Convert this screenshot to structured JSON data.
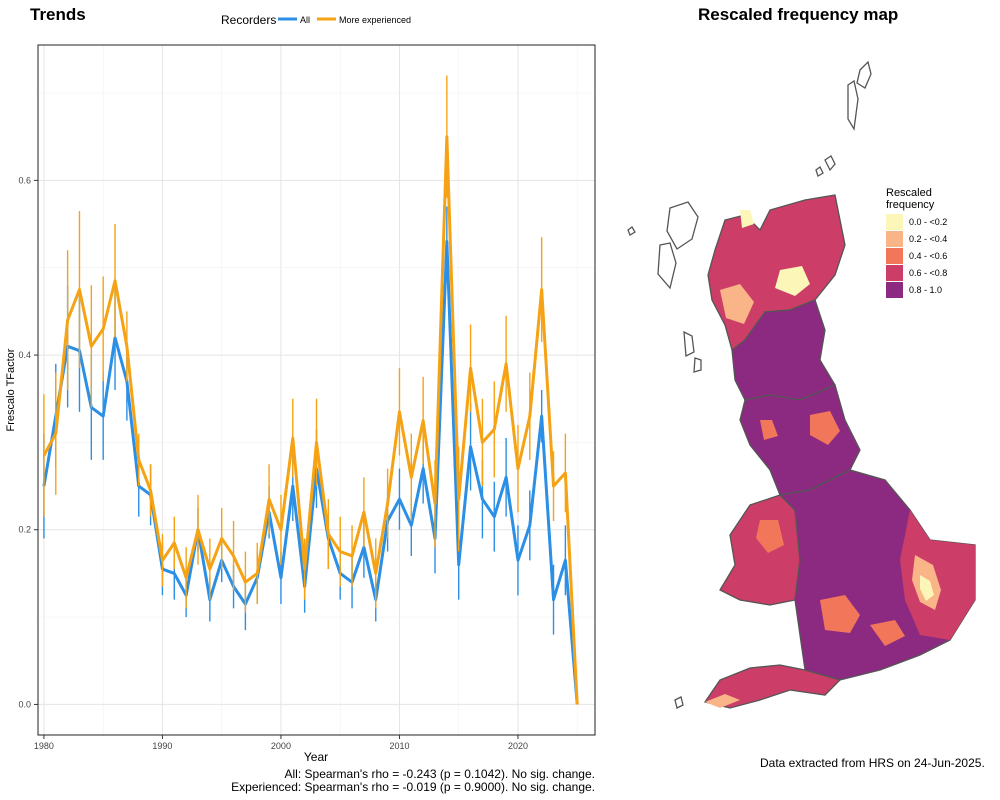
{
  "left_panel": {
    "title": "Trends"
  },
  "right_panel": {
    "title": "Rescaled frequency map"
  },
  "legend": {
    "title": "Recorders",
    "items": [
      "All",
      "More experienced"
    ]
  },
  "stats": {
    "all": "All: Spearman's rho = -0.243 (p = 0.1042). No sig. change.",
    "experienced": "Experienced: Spearman's rho = -0.019 (p = 0.9000). No sig. change."
  },
  "data_note": "Data extracted from HRS on 24-Jun-2025.",
  "map_legend": {
    "title_line1": "Rescaled",
    "title_line2": "frequency",
    "classes": [
      {
        "label": "0.0 - <0.2",
        "color": "#fcf6b9"
      },
      {
        "label": "0.2 - <0.4",
        "color": "#f9b487"
      },
      {
        "label": "0.4 - <0.6",
        "color": "#f2765a"
      },
      {
        "label": "0.6 - <0.8",
        "color": "#cc3d68"
      },
      {
        "label": "0.8 - 1.0",
        "color": "#8c2a82"
      }
    ]
  },
  "chart_data": {
    "type": "line",
    "xlabel": "Year",
    "ylabel": "Frescalo TFactor",
    "xlim": [
      1979.5,
      2026.5
    ],
    "ylim": [
      -0.035,
      0.755
    ],
    "xticks": [
      1980,
      1990,
      2000,
      2010,
      2020
    ],
    "yticks": [
      0.0,
      0.2,
      0.4,
      0.6
    ],
    "grid": true,
    "legend_position": "top",
    "x": [
      1980,
      1981,
      1982,
      1983,
      1984,
      1985,
      1986,
      1987,
      1988,
      1989,
      1990,
      1991,
      1992,
      1993,
      1994,
      1995,
      1996,
      1997,
      1998,
      1999,
      2000,
      2001,
      2002,
      2003,
      2004,
      2005,
      2006,
      2007,
      2008,
      2009,
      2010,
      2011,
      2012,
      2013,
      2014,
      2015,
      2016,
      2017,
      2018,
      2019,
      2020,
      2021,
      2022,
      2023,
      2024,
      2025
    ],
    "series": [
      {
        "name": "All",
        "color": "#2b8fe6",
        "values": [
          0.25,
          0.33,
          0.41,
          0.405,
          0.34,
          0.33,
          0.42,
          0.37,
          0.25,
          0.24,
          0.155,
          0.15,
          0.125,
          0.2,
          0.12,
          0.165,
          0.135,
          0.115,
          0.145,
          0.22,
          0.145,
          0.25,
          0.135,
          0.27,
          0.19,
          0.15,
          0.14,
          0.18,
          0.12,
          0.21,
          0.235,
          0.205,
          0.27,
          0.19,
          0.53,
          0.16,
          0.295,
          0.235,
          0.215,
          0.26,
          0.165,
          0.205,
          0.33,
          0.12,
          0.165,
          0.0
        ],
        "errors": [
          0.06,
          0.06,
          0.07,
          0.07,
          0.06,
          0.05,
          0.06,
          0.045,
          0.035,
          0.035,
          0.03,
          0.03,
          0.025,
          0.025,
          0.025,
          0.025,
          0.025,
          0.03,
          0.03,
          0.03,
          0.03,
          0.04,
          0.03,
          0.045,
          0.035,
          0.03,
          0.03,
          0.035,
          0.025,
          0.035,
          0.035,
          0.035,
          0.04,
          0.04,
          0.04,
          0.04,
          0.05,
          0.045,
          0.04,
          0.045,
          0.04,
          0.04,
          0.03,
          0.04,
          0.04,
          0.0
        ]
      },
      {
        "name": "More experienced",
        "color": "#f5a315",
        "values": [
          0.285,
          0.31,
          0.44,
          0.475,
          0.41,
          0.43,
          0.485,
          0.41,
          0.28,
          0.245,
          0.165,
          0.185,
          0.145,
          0.2,
          0.155,
          0.19,
          0.17,
          0.14,
          0.15,
          0.235,
          0.2,
          0.305,
          0.155,
          0.3,
          0.195,
          0.175,
          0.17,
          0.22,
          0.15,
          0.23,
          0.335,
          0.26,
          0.325,
          0.23,
          0.65,
          0.235,
          0.385,
          0.3,
          0.315,
          0.39,
          0.27,
          0.33,
          0.475,
          0.25,
          0.265,
          0.0
        ],
        "errors": [
          0.07,
          0.07,
          0.08,
          0.09,
          0.07,
          0.06,
          0.065,
          0.04,
          0.03,
          0.03,
          0.03,
          0.03,
          0.035,
          0.04,
          0.035,
          0.035,
          0.04,
          0.035,
          0.035,
          0.04,
          0.04,
          0.045,
          0.035,
          0.05,
          0.04,
          0.04,
          0.035,
          0.04,
          0.04,
          0.04,
          0.05,
          0.05,
          0.05,
          0.05,
          0.07,
          0.06,
          0.05,
          0.05,
          0.055,
          0.055,
          0.05,
          0.05,
          0.06,
          0.04,
          0.045,
          0.0
        ]
      }
    ]
  }
}
